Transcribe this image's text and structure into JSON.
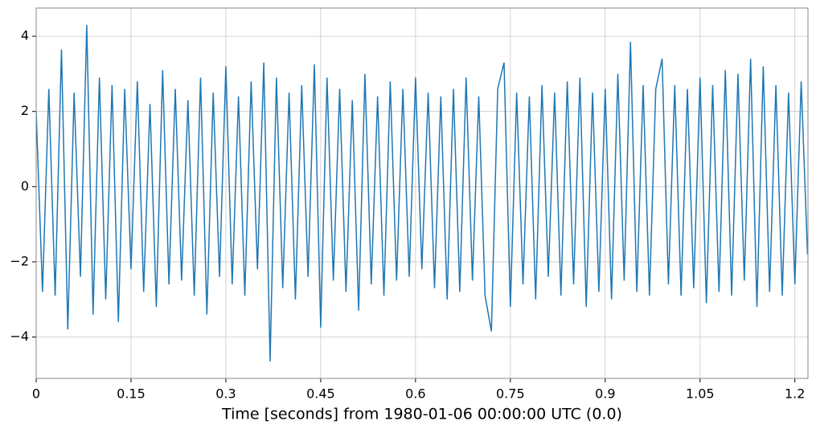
{
  "chart_data": {
    "type": "line",
    "xlabel": "Time [seconds] from 1980-01-06 00:00:00 UTC (0.0)",
    "x": [
      0,
      0.01,
      0.02,
      0.03,
      0.04,
      0.05,
      0.06,
      0.07,
      0.08,
      0.09,
      0.1,
      0.11,
      0.12,
      0.13,
      0.14,
      0.15,
      0.16,
      0.17,
      0.18,
      0.19,
      0.2,
      0.21,
      0.22,
      0.23,
      0.24,
      0.25,
      0.26,
      0.27,
      0.28,
      0.29,
      0.3,
      0.31,
      0.32,
      0.33,
      0.34,
      0.35,
      0.36,
      0.37,
      0.38,
      0.39,
      0.4,
      0.41,
      0.42,
      0.43,
      0.44,
      0.45,
      0.46,
      0.47,
      0.48,
      0.49,
      0.5,
      0.51,
      0.52,
      0.53,
      0.54,
      0.55,
      0.56,
      0.57,
      0.58,
      0.59,
      0.6,
      0.61,
      0.62,
      0.63,
      0.64,
      0.65,
      0.66,
      0.67,
      0.68,
      0.69,
      0.7,
      0.71,
      0.72,
      0.73,
      0.74,
      0.75,
      0.76,
      0.77,
      0.78,
      0.79,
      0.8,
      0.81,
      0.82,
      0.83,
      0.84,
      0.85,
      0.86,
      0.87,
      0.88,
      0.89,
      0.9,
      0.91,
      0.92,
      0.93,
      0.94,
      0.95,
      0.96,
      0.97,
      0.98,
      0.99,
      1,
      1.01,
      1.02,
      1.03,
      1.04,
      1.05,
      1.06,
      1.07,
      1.08,
      1.09,
      1.1,
      1.11,
      1.12,
      1.13,
      1.14,
      1.15,
      1.16,
      1.17,
      1.18,
      1.19,
      1.2,
      1.21,
      1.22
    ],
    "series": [
      {
        "color": "#1f77b4",
        "values": [
          2.0,
          -2.8,
          2.6,
          -2.9,
          3.65,
          -3.8,
          2.5,
          -2.4,
          4.3,
          -3.4,
          2.9,
          -3.0,
          2.7,
          -3.6,
          2.6,
          -2.2,
          2.8,
          -2.8,
          2.2,
          -3.2,
          3.1,
          -2.6,
          2.6,
          -2.5,
          2.3,
          -2.9,
          2.9,
          -3.4,
          2.5,
          -2.4,
          3.2,
          -2.6,
          2.4,
          -2.9,
          2.8,
          -2.2,
          3.3,
          -4.65,
          2.9,
          -2.7,
          2.5,
          -3.0,
          2.7,
          -2.4,
          3.25,
          -3.75,
          2.9,
          -2.5,
          2.6,
          -2.8,
          2.3,
          -3.3,
          3.0,
          -2.6,
          2.4,
          -2.9,
          2.8,
          -2.5,
          2.6,
          -2.4,
          2.9,
          -2.2,
          2.5,
          -2.7,
          2.4,
          -3.0,
          2.6,
          -2.8,
          2.9,
          -2.5,
          2.4,
          -2.9,
          -3.85,
          2.6,
          3.3,
          -3.2,
          2.5,
          -2.6,
          2.4,
          -3.0,
          2.7,
          -2.4,
          2.5,
          -2.9,
          2.8,
          -2.6,
          2.9,
          -3.2,
          2.5,
          -2.8,
          2.6,
          -3.0,
          3.0,
          -2.5,
          3.85,
          -2.8,
          2.7,
          -2.9,
          2.6,
          3.4,
          -2.6,
          2.7,
          -2.9,
          2.6,
          -2.7,
          2.9,
          -3.1,
          2.7,
          -2.8,
          3.1,
          -2.9,
          3.0,
          -2.5,
          3.4,
          -3.2,
          3.2,
          -2.8,
          2.7,
          -2.9,
          2.5,
          -2.6,
          2.8,
          -1.8
        ]
      }
    ],
    "xlim": [
      0,
      1.2207
    ],
    "xticks": [
      0,
      0.15,
      0.3,
      0.45,
      0.6,
      0.75,
      0.9,
      1.05,
      1.2
    ],
    "ylim": [
      -5.1,
      4.75
    ],
    "yticks": [
      {
        "value": -4,
        "label": "−4"
      },
      {
        "value": -2,
        "label": "−2"
      },
      0,
      2,
      4
    ],
    "grid": true
  }
}
